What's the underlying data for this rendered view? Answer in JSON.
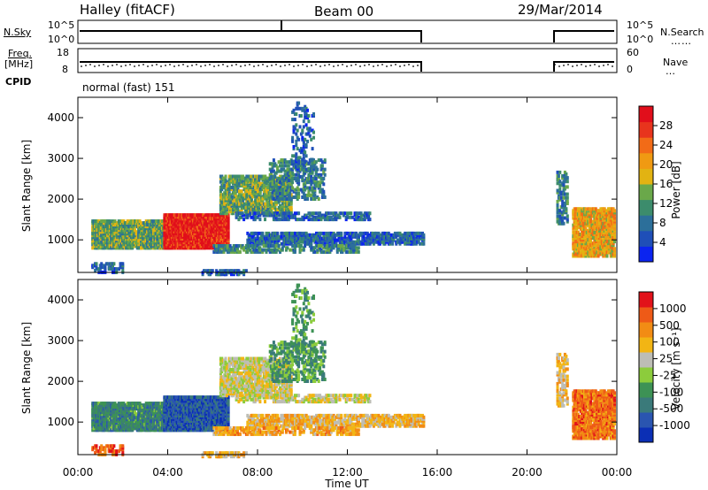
{
  "header": {
    "station": "Halley (fitACF)",
    "beam": "Beam 00",
    "date": "29/Mar/2014"
  },
  "nsky_panel": {
    "left_label": "N.Sky",
    "right_label": "N.Search",
    "ticks_left": [
      "10^5",
      "10^0"
    ],
    "ticks_right": [
      "10^5",
      "10^0"
    ],
    "right_dots": "……"
  },
  "freq_panel": {
    "left_label_1": "Freq.",
    "left_label_2": "[MHz]",
    "right_label": "Nave",
    "ticks_left": [
      "18",
      "8"
    ],
    "ticks_right": [
      "60",
      "0"
    ],
    "right_dots": "…"
  },
  "cpid_panel": {
    "left_label": "CPID",
    "text": "normal (fast) 151"
  },
  "chart_data": [
    {
      "type": "heatmap",
      "name": "power",
      "ylabel": "Slant Range [km]",
      "yticks": [
        "4000",
        "3000",
        "2000",
        "1000"
      ],
      "ylim": [
        200,
        4500
      ],
      "xlim": [
        0,
        24
      ],
      "colorbar": {
        "label": "Power [dB]",
        "ticks": [
          "28",
          "24",
          "20",
          "16",
          "12",
          "8",
          "4"
        ],
        "colors": [
          "#0b24f0",
          "#1f4fb8",
          "#2c6f9a",
          "#3c8c6c",
          "#6aa84a",
          "#e2b312",
          "#f09a12",
          "#f26b17",
          "#e8341d",
          "#e10e1b"
        ]
      }
    },
    {
      "type": "heatmap",
      "name": "velocity",
      "ylabel": "Slant Range [km]",
      "yticks": [
        "4000",
        "3000",
        "2000",
        "1000"
      ],
      "ylim": [
        200,
        4500
      ],
      "xlim": [
        0,
        24
      ],
      "colorbar": {
        "label": "Velocity [m s⁻¹]",
        "ticks": [
          "1000",
          "500",
          "100",
          "25",
          "-25",
          "-100",
          "-500",
          "-1000"
        ],
        "colors": [
          "#0b2fb5",
          "#2a55b0",
          "#3a7a7a",
          "#3d9255",
          "#8ccc3c",
          "#bdbdb5",
          "#f2b514",
          "#f28c14",
          "#ee5a17",
          "#e2121a"
        ]
      }
    }
  ],
  "time_axis": {
    "xlabel": "Time UT",
    "ticks": [
      "00:00",
      "04:00",
      "08:00",
      "12:00",
      "16:00",
      "20:00",
      "00:00"
    ]
  }
}
